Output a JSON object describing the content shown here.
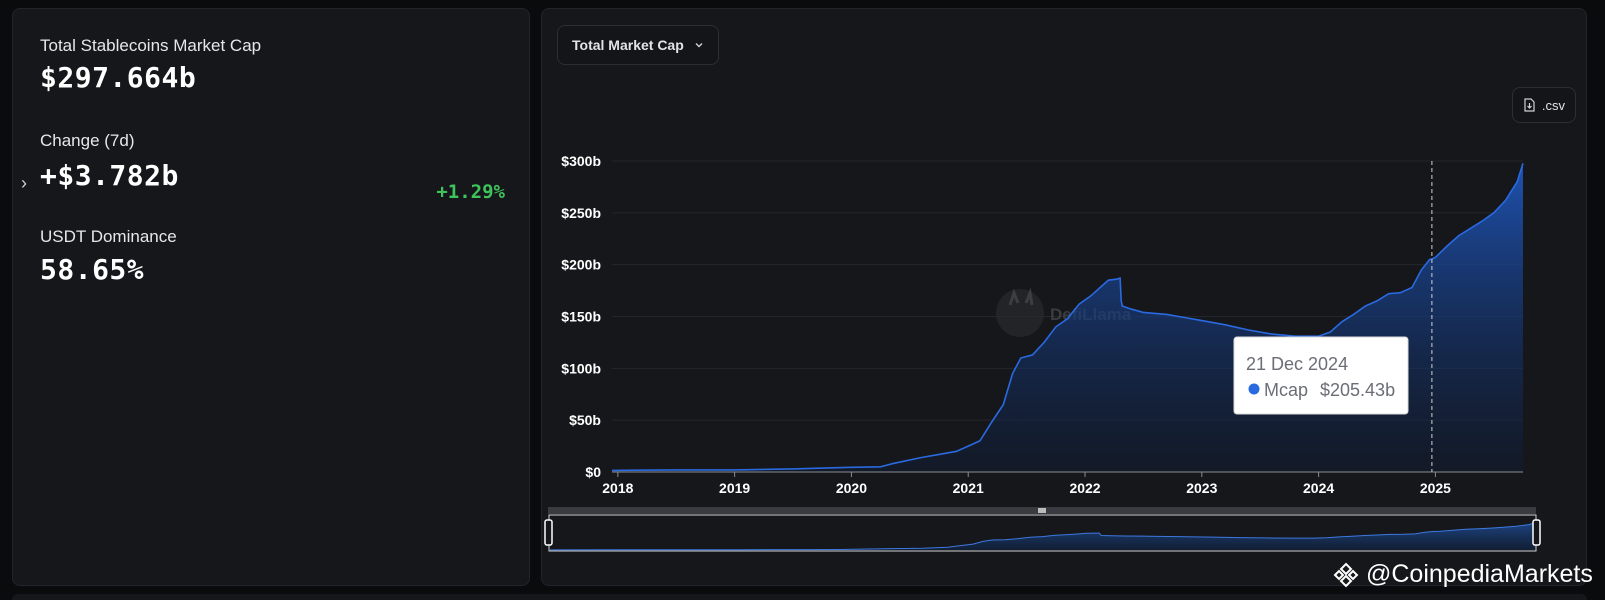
{
  "summary": {
    "market_cap_label": "Total Stablecoins Market Cap",
    "market_cap_value": "$297.664b",
    "change_label": "Change (7d)",
    "change_value": "+$3.782b",
    "change_percent": "+1.29%",
    "dominance_label": "USDT Dominance",
    "dominance_value": "58.65%"
  },
  "toolbar": {
    "metric_select": "Total Market Cap",
    "csv_label": ".csv"
  },
  "tooltip": {
    "date": "21 Dec 2024",
    "series": "Mcap",
    "value": "$205.43b"
  },
  "watermark": {
    "brand": "DefiLlama",
    "overlay": "@CoinpediaMarkets"
  },
  "colors": {
    "line": "#2a6ae0",
    "area_top": "#1f55b8",
    "positive": "#3fc35b",
    "background": "#16171a"
  },
  "chart_data": {
    "type": "area",
    "series": [
      {
        "name": "Mcap"
      }
    ],
    "x_ticks": [
      "2018",
      "2019",
      "2020",
      "2021",
      "2022",
      "2023",
      "2024",
      "2025"
    ],
    "y_ticks": [
      "$0",
      "$50b",
      "$100b",
      "$150b",
      "$200b",
      "$250b",
      "$300b"
    ],
    "ylim": [
      0,
      300
    ],
    "xlim": [
      2017.95,
      2025.75
    ],
    "x": [
      2017.95,
      2018.5,
      2019.0,
      2019.5,
      2019.8,
      2020.0,
      2020.25,
      2020.35,
      2020.6,
      2020.75,
      2020.9,
      2021.0,
      2021.1,
      2021.2,
      2021.3,
      2021.38,
      2021.45,
      2021.55,
      2021.65,
      2021.75,
      2021.85,
      2021.95,
      2022.05,
      2022.15,
      2022.2,
      2022.27,
      2022.3,
      2022.31,
      2022.32,
      2022.4,
      2022.5,
      2022.7,
      2022.85,
      2023.0,
      2023.2,
      2023.4,
      2023.6,
      2023.8,
      2024.0,
      2024.1,
      2024.2,
      2024.3,
      2024.4,
      2024.5,
      2024.6,
      2024.7,
      2024.8,
      2024.88,
      2024.95,
      2024.97,
      2025.0,
      2025.1,
      2025.2,
      2025.3,
      2025.4,
      2025.5,
      2025.6,
      2025.7,
      2025.75
    ],
    "y": [
      1.5,
      2,
      2,
      3,
      4,
      4.5,
      5,
      8,
      14,
      17,
      20,
      25,
      30,
      48,
      65,
      95,
      110,
      113,
      125,
      140,
      148,
      162,
      170,
      180,
      185,
      186,
      187,
      165,
      160,
      157,
      154,
      152,
      149,
      146,
      142,
      137,
      133,
      131,
      131,
      135,
      145,
      152,
      160,
      165,
      172,
      173,
      178,
      195,
      205,
      205.43,
      207,
      218,
      228,
      235,
      242,
      250,
      262,
      280,
      297.7
    ],
    "tooltip_x": 2024.97
  }
}
